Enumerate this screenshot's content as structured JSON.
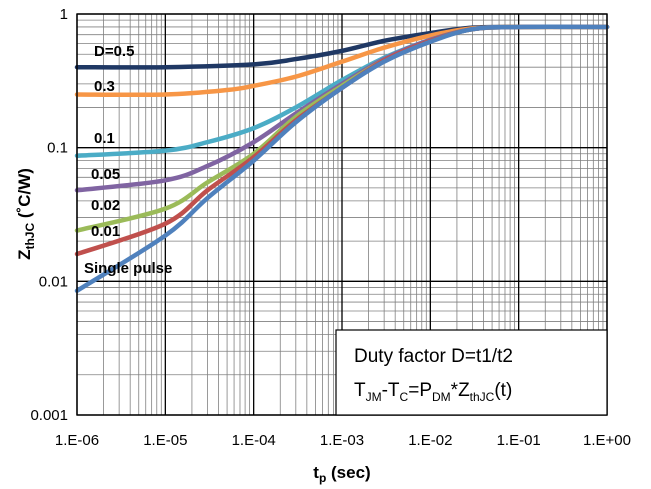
{
  "chart_data": {
    "type": "line",
    "xscale": "log",
    "yscale": "log",
    "xlim": [
      1e-06,
      1
    ],
    "ylim": [
      0.001,
      1
    ],
    "grid": true,
    "xlabel": "t_p (sec)",
    "ylabel": "Z_thJC (˚C/W)",
    "x_ticks": [
      1e-06,
      1e-05,
      0.0001,
      0.001,
      0.01,
      0.1,
      1
    ],
    "x_tick_labels": [
      "1.E-06",
      "1.E-05",
      "1.E-04",
      "1.E-03",
      "1.E-02",
      "1.E-01",
      "1.E+00"
    ],
    "y_ticks": [
      0.001,
      0.01,
      0.1,
      1
    ],
    "y_tick_labels": [
      "0.001",
      "0.01",
      "0.1",
      "1"
    ],
    "series": [
      {
        "name": "D=0.5",
        "color": "#1f3864",
        "x": [
          1e-06,
          1e-05,
          0.0001,
          0.0003,
          0.001,
          0.003,
          0.01,
          0.03,
          0.1,
          1
        ],
        "y": [
          0.4,
          0.4,
          0.42,
          0.46,
          0.53,
          0.63,
          0.72,
          0.79,
          0.8,
          0.8
        ]
      },
      {
        "name": "0.3",
        "color": "#f79646",
        "x": [
          1e-06,
          1e-05,
          5e-05,
          0.0001,
          0.0003,
          0.001,
          0.003,
          0.01,
          0.03,
          0.1,
          1
        ],
        "y": [
          0.25,
          0.25,
          0.27,
          0.29,
          0.34,
          0.44,
          0.56,
          0.69,
          0.78,
          0.8,
          0.8
        ]
      },
      {
        "name": "0.1",
        "color": "#4bacc6",
        "x": [
          1e-06,
          1e-05,
          3e-05,
          0.0001,
          0.0003,
          0.001,
          0.003,
          0.01,
          0.03,
          0.1,
          1
        ],
        "y": [
          0.087,
          0.095,
          0.11,
          0.14,
          0.2,
          0.32,
          0.47,
          0.64,
          0.77,
          0.8,
          0.8
        ]
      },
      {
        "name": "0.05",
        "color": "#8064a2",
        "x": [
          1e-06,
          1e-05,
          3e-05,
          0.0001,
          0.0003,
          0.001,
          0.003,
          0.01,
          0.03,
          0.1,
          1
        ],
        "y": [
          0.048,
          0.057,
          0.073,
          0.11,
          0.18,
          0.3,
          0.46,
          0.64,
          0.77,
          0.8,
          0.8
        ]
      },
      {
        "name": "0.02",
        "color": "#9bbb59",
        "x": [
          1e-06,
          1e-05,
          3e-05,
          0.0001,
          0.0003,
          0.001,
          0.003,
          0.01,
          0.03,
          0.1,
          1
        ],
        "y": [
          0.024,
          0.035,
          0.055,
          0.09,
          0.17,
          0.29,
          0.45,
          0.63,
          0.77,
          0.8,
          0.8
        ]
      },
      {
        "name": "0.01",
        "color": "#c0504d",
        "x": [
          1e-06,
          1e-05,
          3e-05,
          0.0001,
          0.0003,
          0.001,
          0.003,
          0.01,
          0.03,
          0.1,
          1
        ],
        "y": [
          0.016,
          0.027,
          0.048,
          0.085,
          0.16,
          0.28,
          0.45,
          0.63,
          0.77,
          0.8,
          0.8
        ]
      },
      {
        "name": "Single pulse",
        "color": "#4f81bd",
        "x": [
          1e-06,
          1e-05,
          3e-05,
          0.0001,
          0.0003,
          0.001,
          0.003,
          0.01,
          0.03,
          0.1,
          1
        ],
        "y": [
          0.0085,
          0.022,
          0.042,
          0.08,
          0.155,
          0.28,
          0.44,
          0.62,
          0.77,
          0.8,
          0.8
        ]
      }
    ],
    "annotation": {
      "line1": "Duty factor D=t1/t2",
      "line2": "T_JM-T_C=P_DM*Z_thJC(t)"
    }
  },
  "axis_text": {
    "x_main": "t",
    "x_sub": "p",
    "x_rest": " (sec)",
    "y_main": "Z",
    "y_sub": "thJC",
    "y_rest": " (˚C/W)"
  },
  "note": {
    "line1": "Duty factor D=t1/t2",
    "l2_a": "T",
    "l2_a_sub": "JM",
    "l2_b": "-T",
    "l2_b_sub": "C",
    "l2_c": "=P",
    "l2_c_sub": "DM",
    "l2_d": "*Z",
    "l2_d_sub": "thJC",
    "l2_e": "(t)"
  }
}
